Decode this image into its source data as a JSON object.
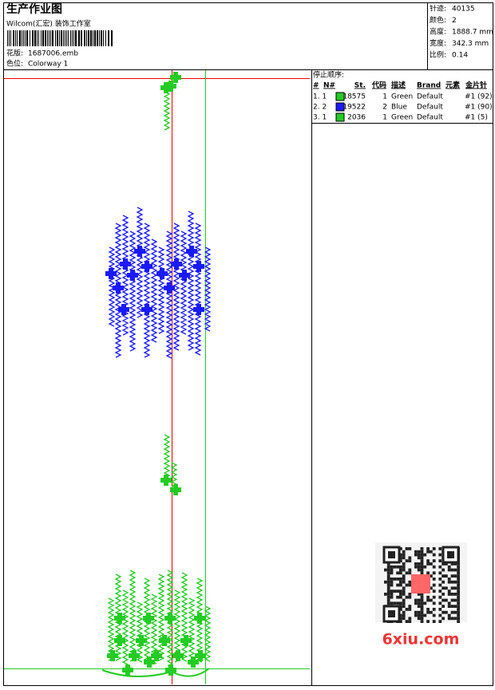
{
  "header": {
    "title": "生产作业图",
    "studio": "Wilcom(汇宏) 装饰工作室",
    "design_label": "花版:",
    "design_file": "1687006.emb",
    "colorway_label": "色位:",
    "colorway": "Colorway 1"
  },
  "info": [
    {
      "label": "针迹:",
      "value": "40135"
    },
    {
      "label": "颜色:",
      "value": "2"
    },
    {
      "label": "高度:",
      "value": "1888.7 mm"
    },
    {
      "label": "宽度:",
      "value": "342.3 mm"
    },
    {
      "label": "比例:",
      "value": "0.14"
    }
  ],
  "stop_sequence": {
    "title": "停止顺序:",
    "columns": [
      "#",
      "N#",
      "St.",
      "代码",
      "描述",
      "Brand",
      "元素",
      "金片针"
    ],
    "rows": [
      {
        "index": "1. 1",
        "color": "#22cc22",
        "stitches": "18575",
        "code": "1",
        "description": "Green",
        "brand": "Default",
        "needle": "#1 (92)"
      },
      {
        "index": "2. 2",
        "color": "#1a1aff",
        "stitches": "19522",
        "code": "2",
        "description": "Blue",
        "brand": "Default",
        "needle": "#1 (90)"
      },
      {
        "index": "3. 1",
        "color": "#22cc22",
        "stitches": "2036",
        "code": "1",
        "description": "Green",
        "brand": "Default",
        "needle": "#1 (5)"
      }
    ]
  },
  "watermark": "6xiu.com"
}
